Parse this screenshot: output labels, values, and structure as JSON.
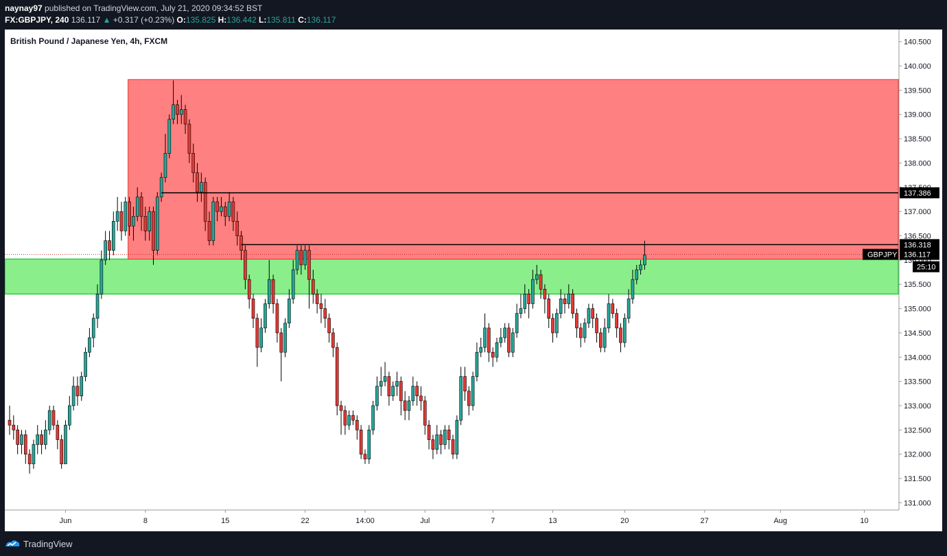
{
  "header": {
    "author": "naynay97",
    "published_text": "published on TradingView.com, July 21, 2020 09:34:52 BST",
    "symbol": "FX:GBPJPY, 240",
    "last": "136.117",
    "change_icon": "triangle-up-icon",
    "change": "+0.317 (+0.23%)",
    "open_label": "O:",
    "open": "135.825",
    "high_label": "H:",
    "high": "136.442",
    "low_label": "L:",
    "low": "135.811",
    "close_label": "C:",
    "close": "136.117"
  },
  "footer": {
    "brand": "TradingView",
    "logo_icon": "tradingview-logo-icon"
  },
  "colors": {
    "up": "#26a69a",
    "down": "#ef5350",
    "candle_up_fill": "#26a69a",
    "candle_down_fill": "#e53935",
    "candle_neutral": "#000000",
    "supply_zone": "#ff8080",
    "demand_zone": "#8aee8a",
    "demand_border": "#2ecc40",
    "supply_border": "#e53935"
  },
  "chart_data": {
    "type": "candlestick",
    "title": "British Pound / Japanese Yen, 4h, FXCM",
    "symbol": "GBPJPY",
    "timeframe": "4h",
    "ylim": [
      130.85,
      140.75
    ],
    "y_ticks": [
      "131.000",
      "131.500",
      "132.000",
      "132.500",
      "133.000",
      "133.500",
      "134.000",
      "134.500",
      "135.000",
      "135.500",
      "136.000",
      "136.500",
      "137.000",
      "137.500",
      "138.000",
      "138.500",
      "139.000",
      "139.500",
      "140.000",
      "140.500"
    ],
    "x_ticks": [
      "Jun",
      "8",
      "15",
      "22",
      "14:00",
      "Jul",
      "7",
      "13",
      "20",
      "27",
      "Aug",
      "10"
    ],
    "x_tick_positions_bar_index": [
      14,
      34,
      54,
      74,
      89,
      104,
      121,
      136,
      154,
      174,
      193,
      214
    ],
    "supply_zone": {
      "from_bar": 30,
      "top": 139.72,
      "bottom": 136.02
    },
    "demand_zone": {
      "from_bar": 0,
      "top": 136.02,
      "bottom": 135.3
    },
    "horizontal_lines": [
      {
        "value": 137.386,
        "from_bar": 38,
        "label": "137.386"
      },
      {
        "value": 136.318,
        "from_bar": 58,
        "label": "136.318"
      }
    ],
    "last_price": {
      "value": 136.117,
      "symbol_tag": "GBPJPY",
      "label": "136.117",
      "countdown": "25:10"
    },
    "candles": [
      [
        132.7,
        132.6,
        133.0,
        132.4
      ],
      [
        132.6,
        132.5,
        132.8,
        132.3
      ],
      [
        132.5,
        132.2,
        132.6,
        132.0
      ],
      [
        132.2,
        132.4,
        132.5,
        132.0
      ],
      [
        132.4,
        132.0,
        132.5,
        131.8
      ],
      [
        132.0,
        131.8,
        132.1,
        131.6
      ],
      [
        131.8,
        132.2,
        132.3,
        131.7
      ],
      [
        132.2,
        132.4,
        132.6,
        132.0
      ],
      [
        132.4,
        132.2,
        132.5,
        132.0
      ],
      [
        132.2,
        132.5,
        132.7,
        132.1
      ],
      [
        132.5,
        132.9,
        133.0,
        132.4
      ],
      [
        132.9,
        132.6,
        133.0,
        132.5
      ],
      [
        132.6,
        132.3,
        132.7,
        132.1
      ],
      [
        132.3,
        131.8,
        132.4,
        131.7
      ],
      [
        131.8,
        132.6,
        132.7,
        131.8
      ],
      [
        132.6,
        133.0,
        133.2,
        132.5
      ],
      [
        133.0,
        133.4,
        133.6,
        132.9
      ],
      [
        133.4,
        133.2,
        133.6,
        133.0
      ],
      [
        133.2,
        133.6,
        133.7,
        133.1
      ],
      [
        133.6,
        134.1,
        134.2,
        133.5
      ],
      [
        134.1,
        134.4,
        134.6,
        134.0
      ],
      [
        134.4,
        134.8,
        134.9,
        134.2
      ],
      [
        134.8,
        135.3,
        135.5,
        134.6
      ],
      [
        135.3,
        136.0,
        136.2,
        135.2
      ],
      [
        136.0,
        136.4,
        136.6,
        135.9
      ],
      [
        136.4,
        136.2,
        136.6,
        136.0
      ],
      [
        136.2,
        136.8,
        137.0,
        136.1
      ],
      [
        136.8,
        137.0,
        137.3,
        136.6
      ],
      [
        137.0,
        136.6,
        137.2,
        136.4
      ],
      [
        136.6,
        137.2,
        137.3,
        136.5
      ],
      [
        137.2,
        136.7,
        137.3,
        136.5
      ],
      [
        136.7,
        136.9,
        137.1,
        136.4
      ],
      [
        136.9,
        137.3,
        137.5,
        136.8
      ],
      [
        137.3,
        136.9,
        137.4,
        136.6
      ],
      [
        136.9,
        136.6,
        137.1,
        136.4
      ],
      [
        136.6,
        137.0,
        137.1,
        136.4
      ],
      [
        137.0,
        136.2,
        137.1,
        135.9
      ],
      [
        136.2,
        137.3,
        137.4,
        136.1
      ],
      [
        137.3,
        137.7,
        137.8,
        137.2
      ],
      [
        137.7,
        138.2,
        138.6,
        137.6
      ],
      [
        138.2,
        138.9,
        139.0,
        138.1
      ],
      [
        138.9,
        139.2,
        139.7,
        138.8
      ],
      [
        139.2,
        139.0,
        139.3,
        138.8
      ],
      [
        139.0,
        139.1,
        139.4,
        138.8
      ],
      [
        139.1,
        138.8,
        139.2,
        138.6
      ],
      [
        138.8,
        138.2,
        138.9,
        138.0
      ],
      [
        138.2,
        137.8,
        138.4,
        137.6
      ],
      [
        137.8,
        137.4,
        138.0,
        137.2
      ],
      [
        137.4,
        137.6,
        137.8,
        137.2
      ],
      [
        137.6,
        136.8,
        137.7,
        136.6
      ],
      [
        136.8,
        136.4,
        137.0,
        136.3
      ],
      [
        136.4,
        137.2,
        137.3,
        136.3
      ],
      [
        137.2,
        137.0,
        137.3,
        136.8
      ],
      [
        137.0,
        137.1,
        137.3,
        136.9
      ],
      [
        137.1,
        136.9,
        137.2,
        136.7
      ],
      [
        136.9,
        137.2,
        137.4,
        136.8
      ],
      [
        137.2,
        136.8,
        137.3,
        136.6
      ],
      [
        136.8,
        136.5,
        137.0,
        136.3
      ],
      [
        136.5,
        136.2,
        136.6,
        136.0
      ],
      [
        136.2,
        135.6,
        136.3,
        135.4
      ],
      [
        135.6,
        135.2,
        135.7,
        135.0
      ],
      [
        135.2,
        134.8,
        135.3,
        134.6
      ],
      [
        134.8,
        134.2,
        134.9,
        133.8
      ],
      [
        134.2,
        134.6,
        134.8,
        134.1
      ],
      [
        134.6,
        135.1,
        135.2,
        134.5
      ],
      [
        135.1,
        135.6,
        136.0,
        135.0
      ],
      [
        135.6,
        135.1,
        135.7,
        134.9
      ],
      [
        135.1,
        134.5,
        135.2,
        134.3
      ],
      [
        134.5,
        134.1,
        134.6,
        133.5
      ],
      [
        134.1,
        134.7,
        134.8,
        134.0
      ],
      [
        134.7,
        135.2,
        135.4,
        134.6
      ],
      [
        135.2,
        135.8,
        136.0,
        135.1
      ],
      [
        135.8,
        136.2,
        136.3,
        135.7
      ],
      [
        136.2,
        135.9,
        136.3,
        135.7
      ],
      [
        135.9,
        136.2,
        136.3,
        135.8
      ],
      [
        136.2,
        135.6,
        136.3,
        135.0
      ],
      [
        135.6,
        135.3,
        135.8,
        135.1
      ],
      [
        135.3,
        135.1,
        135.4,
        134.9
      ],
      [
        135.1,
        135.0,
        135.3,
        134.7
      ],
      [
        135.0,
        134.8,
        135.2,
        134.6
      ],
      [
        134.8,
        134.5,
        134.9,
        134.3
      ],
      [
        134.5,
        134.2,
        134.6,
        134.0
      ],
      [
        134.2,
        133.0,
        134.3,
        132.8
      ],
      [
        133.0,
        132.9,
        133.1,
        132.4
      ],
      [
        132.9,
        132.6,
        133.0,
        132.4
      ],
      [
        132.6,
        132.8,
        132.9,
        132.5
      ],
      [
        132.8,
        132.7,
        132.9,
        132.6
      ],
      [
        132.7,
        132.5,
        132.8,
        132.3
      ],
      [
        132.5,
        132.0,
        132.6,
        131.9
      ],
      [
        132.0,
        131.9,
        132.1,
        131.8
      ],
      [
        131.9,
        132.5,
        132.6,
        131.8
      ],
      [
        132.5,
        133.0,
        133.1,
        132.4
      ],
      [
        133.0,
        133.4,
        133.6,
        132.9
      ],
      [
        133.4,
        133.5,
        133.8,
        133.2
      ],
      [
        133.5,
        133.6,
        133.9,
        133.4
      ],
      [
        133.6,
        133.2,
        133.7,
        133.0
      ],
      [
        133.2,
        133.4,
        133.5,
        133.1
      ],
      [
        133.4,
        133.5,
        133.7,
        133.2
      ],
      [
        133.5,
        133.1,
        133.6,
        132.8
      ],
      [
        133.1,
        132.9,
        133.3,
        132.7
      ],
      [
        132.9,
        133.1,
        133.2,
        132.7
      ],
      [
        133.1,
        133.4,
        133.6,
        133.0
      ],
      [
        133.4,
        133.2,
        133.5,
        133.0
      ],
      [
        133.2,
        133.1,
        133.4,
        132.9
      ],
      [
        133.1,
        132.6,
        133.2,
        132.4
      ],
      [
        132.6,
        132.3,
        132.7,
        132.1
      ],
      [
        132.3,
        132.1,
        132.4,
        131.9
      ],
      [
        132.1,
        132.4,
        132.6,
        132.0
      ],
      [
        132.4,
        132.2,
        132.5,
        132.0
      ],
      [
        132.2,
        132.5,
        132.6,
        132.1
      ],
      [
        132.5,
        132.3,
        132.6,
        132.1
      ],
      [
        132.3,
        132.0,
        132.4,
        131.9
      ],
      [
        132.0,
        132.7,
        132.8,
        131.9
      ],
      [
        132.7,
        133.6,
        133.8,
        132.6
      ],
      [
        133.6,
        133.3,
        133.8,
        133.1
      ],
      [
        133.3,
        133.0,
        133.4,
        132.8
      ],
      [
        133.0,
        133.6,
        133.7,
        132.9
      ],
      [
        133.6,
        134.1,
        134.3,
        133.5
      ],
      [
        134.1,
        134.2,
        134.4,
        134.0
      ],
      [
        134.2,
        134.6,
        134.9,
        134.1
      ],
      [
        134.6,
        134.1,
        134.7,
        133.9
      ],
      [
        134.1,
        134.0,
        134.2,
        133.8
      ],
      [
        134.0,
        134.3,
        134.4,
        133.9
      ],
      [
        134.3,
        134.4,
        134.6,
        134.2
      ],
      [
        134.4,
        134.6,
        134.7,
        134.3
      ],
      [
        134.6,
        134.1,
        134.7,
        134.0
      ],
      [
        134.1,
        134.5,
        134.6,
        134.0
      ],
      [
        134.5,
        134.9,
        135.1,
        134.4
      ],
      [
        134.9,
        135.0,
        135.3,
        134.8
      ],
      [
        135.0,
        135.3,
        135.5,
        134.9
      ],
      [
        135.3,
        135.1,
        135.4,
        134.8
      ],
      [
        135.1,
        135.6,
        135.8,
        135.0
      ],
      [
        135.6,
        135.7,
        135.9,
        135.5
      ],
      [
        135.7,
        135.4,
        135.8,
        135.2
      ],
      [
        135.4,
        135.2,
        135.5,
        134.9
      ],
      [
        135.2,
        134.8,
        135.3,
        134.6
      ],
      [
        134.8,
        134.5,
        134.9,
        134.3
      ],
      [
        134.5,
        134.9,
        135.0,
        134.4
      ],
      [
        134.9,
        135.2,
        135.4,
        134.8
      ],
      [
        135.2,
        135.1,
        135.3,
        134.9
      ],
      [
        135.1,
        135.3,
        135.5,
        135.0
      ],
      [
        135.3,
        134.9,
        135.4,
        134.8
      ],
      [
        134.9,
        134.6,
        135.0,
        134.4
      ],
      [
        134.6,
        134.4,
        134.7,
        134.2
      ],
      [
        134.4,
        134.7,
        134.8,
        134.3
      ],
      [
        134.7,
        135.0,
        135.1,
        134.6
      ],
      [
        135.0,
        134.8,
        135.1,
        134.6
      ],
      [
        134.8,
        134.5,
        134.9,
        134.3
      ],
      [
        134.5,
        134.2,
        134.6,
        134.1
      ],
      [
        134.2,
        134.6,
        134.8,
        134.1
      ],
      [
        134.6,
        135.1,
        135.3,
        134.5
      ],
      [
        135.1,
        134.9,
        135.2,
        134.8
      ],
      [
        134.9,
        134.6,
        135.0,
        134.4
      ],
      [
        134.6,
        134.3,
        134.7,
        134.1
      ],
      [
        134.3,
        134.8,
        134.9,
        134.2
      ],
      [
        134.8,
        135.2,
        135.4,
        134.7
      ],
      [
        135.2,
        135.6,
        135.8,
        135.1
      ],
      [
        135.6,
        135.8,
        135.9,
        135.5
      ],
      [
        135.8,
        135.9,
        136.0,
        135.7
      ],
      [
        135.9,
        136.1,
        136.4,
        135.8
      ]
    ]
  }
}
